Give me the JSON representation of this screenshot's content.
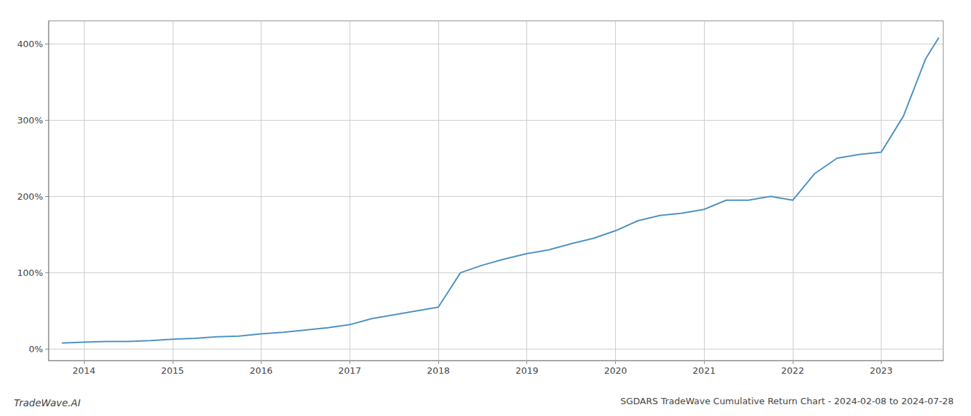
{
  "chart_data": {
    "type": "line",
    "title": "SGDARS TradeWave Cumulative Return Chart - 2024-02-08 to 2024-07-28",
    "annotations": [
      "TradeWave.AI"
    ],
    "x": [
      2013.75,
      2014.0,
      2014.25,
      2014.5,
      2014.75,
      2015.0,
      2015.25,
      2015.5,
      2015.75,
      2016.0,
      2016.25,
      2016.5,
      2016.75,
      2017.0,
      2017.25,
      2017.5,
      2017.75,
      2018.0,
      2018.25,
      2018.5,
      2018.75,
      2019.0,
      2019.25,
      2019.5,
      2019.75,
      2020.0,
      2020.25,
      2020.5,
      2020.75,
      2021.0,
      2021.25,
      2021.5,
      2021.75,
      2022.0,
      2022.25,
      2022.5,
      2022.75,
      2023.0,
      2023.25,
      2023.5,
      2023.65
    ],
    "values": [
      8,
      9,
      10,
      10,
      11,
      13,
      14,
      16,
      17,
      20,
      22,
      25,
      28,
      32,
      40,
      45,
      50,
      55,
      100,
      110,
      118,
      125,
      130,
      138,
      145,
      155,
      168,
      175,
      178,
      183,
      195,
      195,
      200,
      195,
      230,
      250,
      255,
      258,
      305,
      380,
      408
    ],
    "color": "#4a90c4",
    "xlim": [
      2013.6,
      2023.7
    ],
    "xticks": [
      2014,
      2015,
      2016,
      2017,
      2018,
      2019,
      2020,
      2021,
      2022,
      2023
    ],
    "ylim": [
      -15,
      430
    ],
    "yticks": [
      {
        "value": 0,
        "label": "0%"
      },
      {
        "value": 100,
        "label": "100%"
      },
      {
        "value": 200,
        "label": "200%"
      },
      {
        "value": 300,
        "label": "300%"
      },
      {
        "value": 400,
        "label": "400%"
      }
    ],
    "grid": true
  }
}
